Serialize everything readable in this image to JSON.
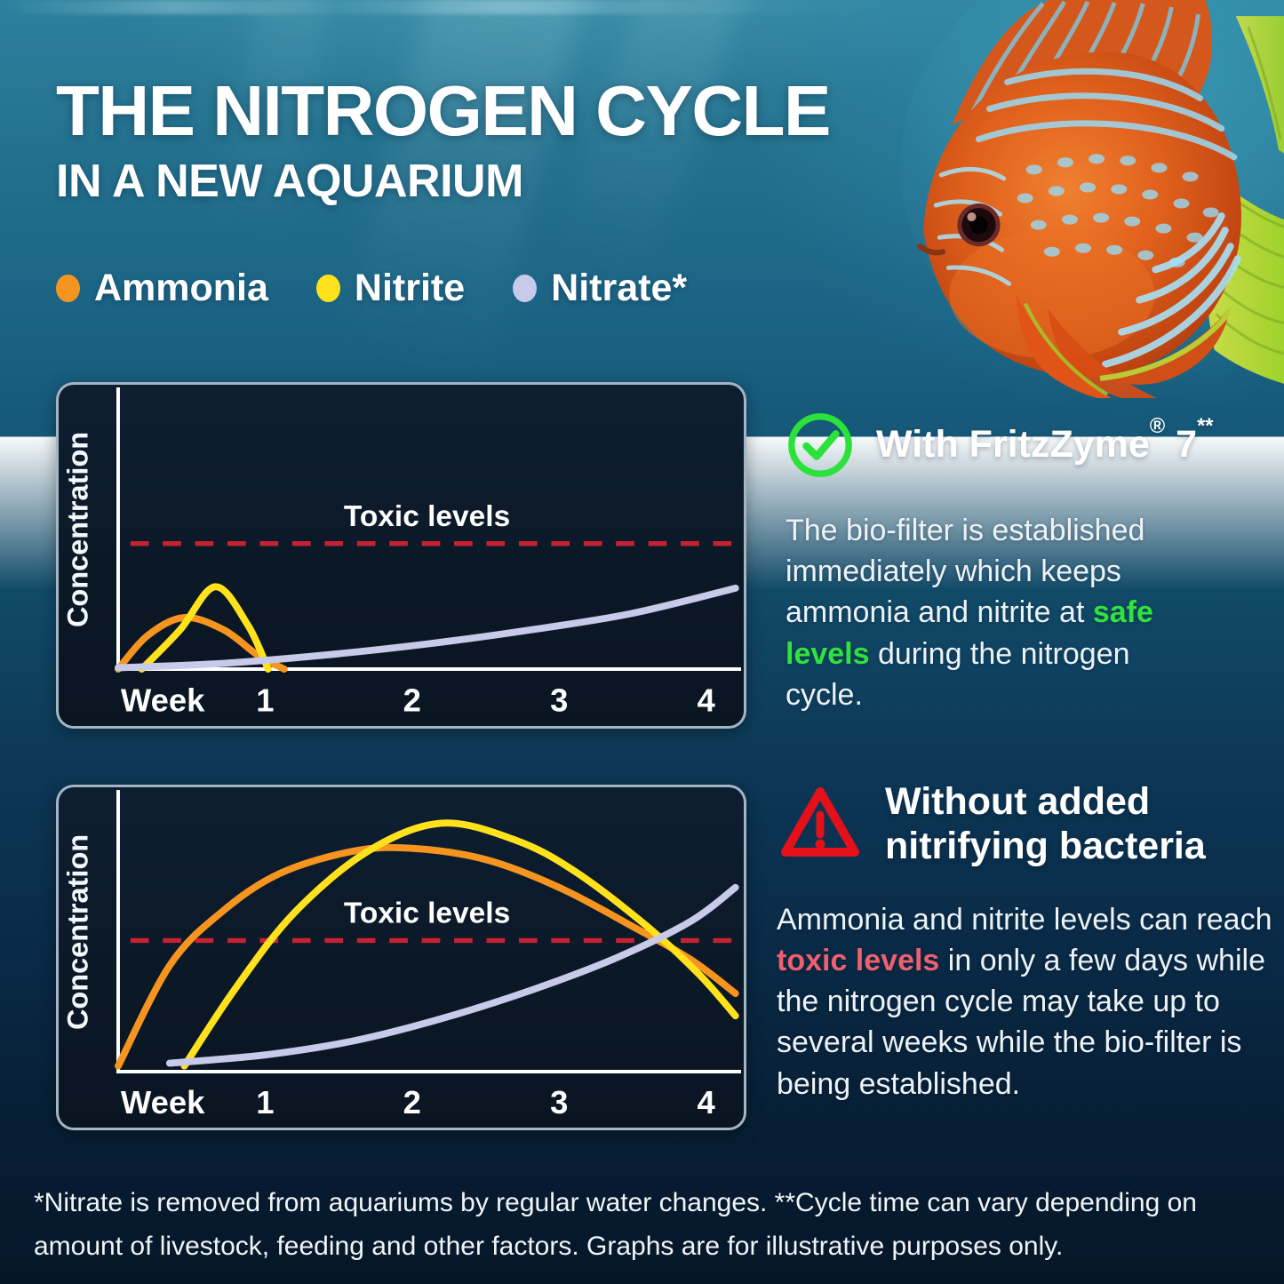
{
  "title": {
    "line1": "THE NITROGEN CYCLE",
    "line2": "IN A NEW AQUARIUM"
  },
  "legend": [
    {
      "label": "Ammonia",
      "color": "#f5941f"
    },
    {
      "label": "Nitrite",
      "color": "#ffe11c"
    },
    {
      "label": "Nitrate*",
      "color": "#c7cae8"
    }
  ],
  "chart_data": [
    {
      "type": "line",
      "xlabel": "Week",
      "ylabel": "Concentration",
      "x_ticks": [
        1,
        2,
        3,
        4
      ],
      "x_range": [
        0,
        4.2
      ],
      "y_range": [
        0,
        1
      ],
      "grid": false,
      "legend_position": "none",
      "annotation": "Toxic levels",
      "annotation_color": "#ffffff",
      "toxic_line_color": "#c72134",
      "toxic_level_y": 0.45,
      "series": [
        {
          "name": "Ammonia",
          "color": "#f5941f",
          "points": [
            [
              0,
              0
            ],
            [
              0.2,
              0.12
            ],
            [
              0.45,
              0.185
            ],
            [
              0.72,
              0.14
            ],
            [
              0.95,
              0.05
            ],
            [
              1.13,
              0
            ]
          ]
        },
        {
          "name": "Nitrite",
          "color": "#ffe11c",
          "points": [
            [
              0.16,
              0
            ],
            [
              0.42,
              0.14
            ],
            [
              0.66,
              0.295
            ],
            [
              0.88,
              0.16
            ],
            [
              1.02,
              0
            ]
          ]
        },
        {
          "name": "Nitrate",
          "color": "#c7cae8",
          "points": [
            [
              0,
              0.005
            ],
            [
              0.7,
              0.02
            ],
            [
              1.4,
              0.05
            ],
            [
              2.1,
              0.09
            ],
            [
              2.8,
              0.14
            ],
            [
              3.5,
              0.2
            ],
            [
              4.2,
              0.29
            ]
          ]
        }
      ]
    },
    {
      "type": "line",
      "xlabel": "Week",
      "ylabel": "Concentration",
      "x_ticks": [
        1,
        2,
        3,
        4
      ],
      "x_range": [
        0,
        4.2
      ],
      "y_range": [
        0,
        1
      ],
      "grid": false,
      "legend_position": "none",
      "annotation": "Toxic levels",
      "annotation_color": "#ffffff",
      "toxic_line_color": "#c72134",
      "toxic_level_y": 0.47,
      "series": [
        {
          "name": "Ammonia",
          "color": "#f5941f",
          "points": [
            [
              0,
              0.02
            ],
            [
              0.35,
              0.38
            ],
            [
              0.7,
              0.57
            ],
            [
              1.1,
              0.71
            ],
            [
              1.6,
              0.79
            ],
            [
              2.0,
              0.8
            ],
            [
              2.5,
              0.76
            ],
            [
              3.0,
              0.66
            ],
            [
              3.5,
              0.52
            ],
            [
              3.9,
              0.4
            ],
            [
              4.2,
              0.28
            ]
          ]
        },
        {
          "name": "Nitrite",
          "color": "#ffe11c",
          "points": [
            [
              0.45,
              0.02
            ],
            [
              0.8,
              0.3
            ],
            [
              1.2,
              0.57
            ],
            [
              1.7,
              0.79
            ],
            [
              2.2,
              0.89
            ],
            [
              2.7,
              0.83
            ],
            [
              3.1,
              0.72
            ],
            [
              3.6,
              0.52
            ],
            [
              3.95,
              0.35
            ],
            [
              4.2,
              0.2
            ]
          ]
        },
        {
          "name": "Nitrate",
          "color": "#c7cae8",
          "points": [
            [
              0.35,
              0.03
            ],
            [
              1.0,
              0.06
            ],
            [
              1.6,
              0.11
            ],
            [
              2.2,
              0.19
            ],
            [
              2.8,
              0.29
            ],
            [
              3.4,
              0.41
            ],
            [
              3.9,
              0.54
            ],
            [
              4.2,
              0.66
            ]
          ]
        }
      ]
    }
  ],
  "sections": [
    {
      "icon": "check-circle",
      "icon_color": "#2ae23a",
      "heading": {
        "main": "With FritzZyme",
        "reg_mark": "®",
        "after": " 7",
        "asterisks": "**"
      },
      "body": {
        "before": "The bio-filter is established immediately which keeps ammonia and nitrite at ",
        "highlight": "safe levels",
        "after": " during the nitrogen cycle."
      },
      "highlight_color": "#2fe33c"
    },
    {
      "icon": "warning-triangle",
      "icon_color": "#e4111b",
      "heading": {
        "line1": "Without added",
        "line2": "nitrifying bacteria"
      },
      "body": {
        "before": "Ammonia and nitrite levels can reach ",
        "highlight": "toxic levels",
        "after": " in only a few days while the nitrogen cycle may take up to several weeks while the bio-filter is being established."
      },
      "highlight_color": "#ef5f6d"
    }
  ],
  "footnote": "*Nitrate is removed from aquariums by regular water changes. **Cycle time can vary depending on amount of livestock, feeding and other factors. Graphs are for illustrative purposes only."
}
